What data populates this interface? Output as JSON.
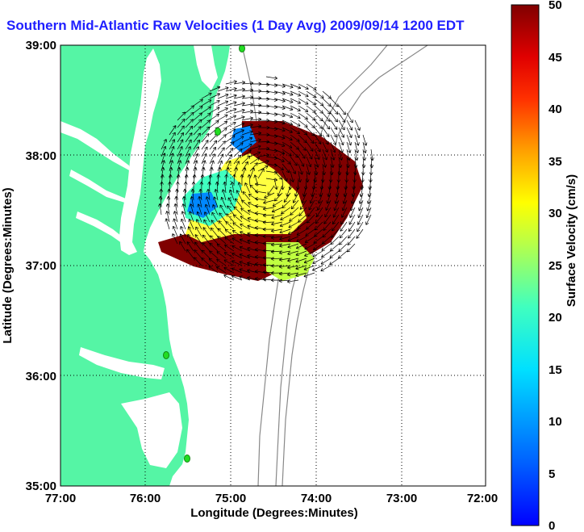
{
  "title": "Southern Mid-Atlantic Raw Velocities (1 Day Avg) 2009/09/14 1200 EDT",
  "map": {
    "xlabel": "Longitude (Degrees:Minutes)",
    "ylabel": "Latitude (Degrees:Minutes)",
    "x_ticks": [
      "77:00",
      "76:00",
      "75:00",
      "74:00",
      "73:00",
      "72:00"
    ],
    "y_ticks": [
      "39:00",
      "38:00",
      "37:00",
      "36:00",
      "35:00"
    ],
    "land_color": "#55f5a5",
    "water_color": "#ffffff",
    "isobath_color": "#888888",
    "station_color": "#22dd22"
  },
  "colorbar": {
    "label": "Surface Velocity (cm/s)",
    "ticks": [
      "50",
      "45",
      "40",
      "35",
      "30",
      "25",
      "20",
      "15",
      "10",
      "5",
      "0"
    ],
    "range": [
      0,
      50
    ],
    "colormap": "jet"
  }
}
